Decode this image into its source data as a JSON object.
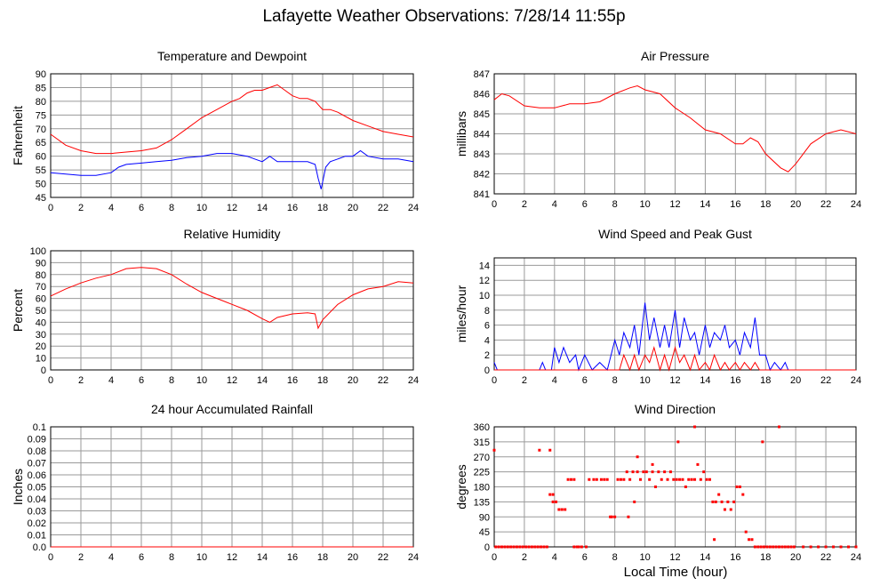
{
  "title": "Lafayette Weather Observations: 7/28/14 11:55p",
  "xlabel": "Local Time (hour)",
  "colors": {
    "red": "#ff0000",
    "blue": "#0000ff",
    "grid": "#9a9a9a"
  },
  "chart_data": [
    {
      "id": "temp",
      "type": "line",
      "title": "Temperature and Dewpoint",
      "ylabel": "Fahrenheit",
      "xlim": [
        0,
        24
      ],
      "ylim": [
        45,
        90
      ],
      "xticks": [
        0,
        2,
        4,
        6,
        8,
        10,
        12,
        14,
        16,
        18,
        20,
        22,
        24
      ],
      "yticks": [
        45,
        50,
        55,
        60,
        65,
        70,
        75,
        80,
        85,
        90
      ],
      "grid": true,
      "series": [
        {
          "color": "red",
          "x": [
            0,
            1,
            2,
            3,
            4,
            5,
            6,
            7,
            8,
            9,
            10,
            11,
            12,
            12.5,
            13,
            13.5,
            14,
            14.5,
            15,
            15.5,
            16,
            16.5,
            17,
            17.5,
            18,
            18.5,
            19,
            20,
            21,
            22,
            23,
            24
          ],
          "y": [
            68,
            64,
            62,
            61,
            61,
            61.5,
            62,
            63,
            66,
            70,
            74,
            77,
            80,
            81,
            83,
            84,
            84,
            85,
            86,
            84,
            82,
            81,
            81,
            80,
            77,
            77,
            76,
            73,
            71,
            69,
            68,
            67
          ]
        },
        {
          "color": "blue",
          "x": [
            0,
            1,
            2,
            3,
            4,
            4.5,
            5,
            6,
            7,
            8,
            9,
            10,
            11,
            12,
            13,
            13.5,
            14,
            14.5,
            15,
            16,
            17,
            17.5,
            17.7,
            17.9,
            18.2,
            18.5,
            19,
            19.5,
            20,
            20.5,
            21,
            22,
            23,
            24
          ],
          "y": [
            54,
            53.5,
            53,
            53,
            54,
            56,
            57,
            57.5,
            58,
            58.5,
            59.5,
            60,
            61,
            61,
            60,
            59,
            58,
            60,
            58,
            58,
            58,
            57,
            52,
            48,
            56,
            58,
            59,
            60,
            60,
            62,
            60,
            59,
            59,
            58
          ]
        }
      ]
    },
    {
      "id": "pressure",
      "type": "line",
      "title": "Air Pressure",
      "ylabel": "millibars",
      "xlim": [
        0,
        24
      ],
      "ylim": [
        841,
        847
      ],
      "xticks": [
        0,
        2,
        4,
        6,
        8,
        10,
        12,
        14,
        16,
        18,
        20,
        22,
        24
      ],
      "yticks": [
        841,
        842,
        843,
        844,
        845,
        846,
        847
      ],
      "grid": true,
      "series": [
        {
          "color": "red",
          "x": [
            0,
            0.5,
            1,
            2,
            3,
            4,
            5,
            6,
            7,
            8,
            9,
            9.5,
            10,
            11,
            12,
            13,
            14,
            15,
            16,
            16.5,
            17,
            17.5,
            18,
            19,
            19.5,
            20,
            21,
            22,
            23,
            24
          ],
          "y": [
            845.7,
            846,
            845.9,
            845.4,
            845.3,
            845.3,
            845.5,
            845.5,
            845.6,
            846,
            846.3,
            846.4,
            846.2,
            846,
            845.3,
            844.8,
            844.2,
            844,
            843.5,
            843.5,
            843.8,
            843.6,
            843,
            842.3,
            842.1,
            842.5,
            843.5,
            844,
            844.2,
            844
          ]
        }
      ]
    },
    {
      "id": "humidity",
      "type": "line",
      "title": "Relative Humidity",
      "ylabel": "Percent",
      "xlim": [
        0,
        24
      ],
      "ylim": [
        0,
        100
      ],
      "xticks": [
        0,
        2,
        4,
        6,
        8,
        10,
        12,
        14,
        16,
        18,
        20,
        22,
        24
      ],
      "yticks": [
        0,
        10,
        20,
        30,
        40,
        50,
        60,
        70,
        80,
        90,
        100
      ],
      "grid": true,
      "series": [
        {
          "color": "red",
          "x": [
            0,
            1,
            2,
            3,
            4,
            5,
            6,
            7,
            8,
            9,
            10,
            11,
            12,
            13,
            14,
            14.5,
            15,
            16,
            17,
            17.5,
            17.7,
            18,
            19,
            20,
            21,
            22,
            23,
            24
          ],
          "y": [
            62,
            68,
            73,
            77,
            80,
            85,
            86,
            85,
            80,
            72,
            65,
            60,
            55,
            50,
            43,
            40,
            44,
            47,
            48,
            47,
            35,
            42,
            55,
            63,
            68,
            70,
            74,
            73
          ]
        }
      ]
    },
    {
      "id": "wind",
      "type": "line",
      "title": "Wind Speed and Peak Gust",
      "ylabel": "miles/hour",
      "xlim": [
        0,
        24
      ],
      "ylim": [
        0,
        15
      ],
      "xticks": [
        0,
        2,
        4,
        6,
        8,
        10,
        12,
        14,
        16,
        18,
        20,
        22,
        24
      ],
      "yticks": [
        0,
        2,
        4,
        6,
        8,
        10,
        12,
        14
      ],
      "grid": true,
      "series": [
        {
          "color": "blue",
          "x": [
            0,
            0.2,
            0.4,
            3,
            3.2,
            3.4,
            3.8,
            4,
            4.3,
            4.6,
            5,
            5.4,
            5.6,
            6,
            6.5,
            7,
            7.5,
            8,
            8.3,
            8.6,
            9,
            9.3,
            9.6,
            10,
            10.3,
            10.6,
            11,
            11.3,
            11.6,
            12,
            12.3,
            12.6,
            13,
            13.3,
            13.6,
            14,
            14.3,
            14.6,
            15,
            15.3,
            15.6,
            16,
            16.3,
            16.6,
            17,
            17.3,
            17.6,
            18,
            18.3,
            18.6,
            19,
            19.3,
            19.5,
            24
          ],
          "y": [
            1,
            0,
            0,
            0,
            1,
            0,
            0,
            3,
            1,
            3,
            1,
            2,
            0,
            2,
            0,
            1,
            0,
            4,
            2,
            5,
            3,
            6,
            2,
            9,
            4,
            7,
            3,
            6,
            3,
            8,
            3,
            7,
            4,
            5,
            2,
            6,
            3,
            5,
            4,
            6,
            3,
            4,
            2,
            5,
            3,
            7,
            2,
            2,
            0,
            1,
            0,
            1,
            0,
            0
          ]
        },
        {
          "color": "red",
          "x": [
            0,
            8,
            8.3,
            8.6,
            9,
            9.3,
            9.6,
            10,
            10.3,
            10.6,
            11,
            11.3,
            11.6,
            12,
            12.3,
            12.6,
            13,
            13.3,
            13.6,
            14,
            14.3,
            14.6,
            15,
            15.3,
            15.6,
            16,
            16.3,
            16.6,
            17,
            17.3,
            17.6,
            18,
            24
          ],
          "y": [
            0,
            0,
            0,
            2,
            0,
            2,
            0,
            2,
            1,
            3,
            0,
            2,
            0,
            3,
            1,
            2,
            0,
            2,
            0,
            1,
            0,
            2,
            0,
            1,
            0,
            1,
            0,
            1,
            0,
            1,
            0,
            0,
            0
          ]
        }
      ]
    },
    {
      "id": "rain",
      "type": "line",
      "title": "24 hour Accumulated Rainfall",
      "ylabel": "Inches",
      "xlim": [
        0,
        24
      ],
      "ylim": [
        0,
        0.1
      ],
      "xticks": [
        0,
        2,
        4,
        6,
        8,
        10,
        12,
        14,
        16,
        18,
        20,
        22,
        24
      ],
      "yticks": [
        "0.0",
        "0.01",
        "0.02",
        "0.03",
        "0.04",
        "0.05",
        "0.06",
        "0.07",
        "0.08",
        "0.09",
        "0.1"
      ],
      "grid": true,
      "series": [
        {
          "color": "red",
          "x": [
            0,
            24
          ],
          "y": [
            0,
            0
          ]
        }
      ]
    },
    {
      "id": "direction",
      "type": "scatter",
      "title": "Wind Direction",
      "ylabel": "degrees",
      "xlim": [
        0,
        24
      ],
      "ylim": [
        0,
        360
      ],
      "xticks": [
        0,
        2,
        4,
        6,
        8,
        10,
        12,
        14,
        16,
        18,
        20,
        22,
        24
      ],
      "yticks": [
        0,
        45,
        90,
        135,
        180,
        225,
        270,
        315,
        360
      ],
      "grid": true,
      "series": [
        {
          "color": "red",
          "x": [
            0,
            0.1,
            0.3,
            0.5,
            0.7,
            0.9,
            1.1,
            1.3,
            1.5,
            1.7,
            1.9,
            2.1,
            2.3,
            2.5,
            2.7,
            2.9,
            3.1,
            3.3,
            3.5,
            3,
            3.7,
            3.7,
            3.9,
            3.9,
            4.1,
            4.3,
            4.3,
            4.5,
            4.7,
            4.9,
            5.1,
            5.3,
            5.5,
            5.3,
            5.6,
            5.8,
            6.1,
            6.3,
            6.6,
            6.8,
            7.1,
            7.3,
            7.5,
            7.7,
            7.8,
            8,
            8.2,
            8.4,
            8.6,
            8.8,
            9,
            9.2,
            9.3,
            9.5,
            9.7,
            9.9,
            10.1,
            10.3,
            10.5,
            10.7,
            10.9,
            11.1,
            11.3,
            11.5,
            11.7,
            11.9,
            12.1,
            12.3,
            12.5,
            12.7,
            12.9,
            13.1,
            13.3,
            13.5,
            13.7,
            13.9,
            14.1,
            14.3,
            14.5,
            14.7,
            14.9,
            15.1,
            15.3,
            15.5,
            15.7,
            15.9,
            16.1,
            16.3,
            16.5,
            16.7,
            16.9,
            17.1,
            17.3,
            17.5,
            17.7,
            17.9,
            18.1,
            18.3,
            18.5,
            18.7,
            18.9,
            19.1,
            19.3,
            19.5,
            19.7,
            19.9,
            20.5,
            21,
            21.5,
            22,
            22.5,
            23,
            23.5,
            24,
            10.5,
            12.2,
            13.3,
            14.6,
            9.5,
            8.9,
            17.8,
            18.9
          ],
          "y": [
            290,
            0,
            0,
            0,
            0,
            0,
            0,
            0,
            0,
            0,
            0,
            0,
            0,
            0,
            0,
            0,
            0,
            0,
            0,
            290,
            290,
            157,
            157,
            135,
            135,
            112,
            112,
            112,
            112,
            202,
            202,
            0,
            0,
            202,
            0,
            0,
            0,
            202,
            202,
            202,
            202,
            202,
            202,
            90,
            90,
            90,
            202,
            202,
            202,
            225,
            202,
            225,
            135,
            225,
            202,
            225,
            225,
            202,
            225,
            180,
            225,
            202,
            225,
            202,
            225,
            202,
            202,
            202,
            202,
            180,
            202,
            202,
            202,
            247,
            202,
            225,
            202,
            202,
            135,
            135,
            157,
            135,
            112,
            135,
            112,
            135,
            180,
            180,
            157,
            45,
            22,
            22,
            0,
            0,
            0,
            0,
            0,
            0,
            0,
            0,
            0,
            0,
            0,
            0,
            0,
            0,
            0,
            0,
            0,
            0,
            0,
            0,
            0,
            0,
            247,
            315,
            360,
            22,
            270,
            90,
            315,
            360
          ]
        }
      ]
    }
  ]
}
